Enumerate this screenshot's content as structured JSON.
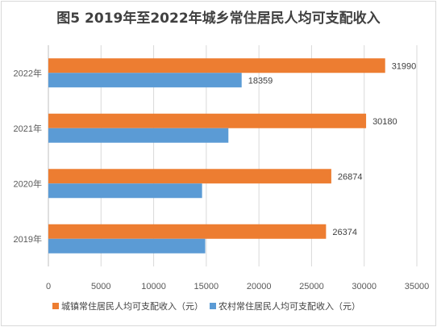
{
  "chart_data": {
    "type": "bar",
    "orientation": "horizontal",
    "title": "图5 2019年至2022年城乡常住居民人均可支配收入",
    "categories": [
      "2022年",
      "2021年",
      "2020年",
      "2019年"
    ],
    "series": [
      {
        "name": "城镇常住居民人均可支配收入（元）",
        "color": "#ed7d31",
        "values": [
          31990,
          30180,
          26874,
          26374
        ],
        "labels": [
          "31990",
          "30180",
          "26874",
          "26374"
        ]
      },
      {
        "name": "农村常住居民人均可支配收入（元）",
        "color": "#5b9bd5",
        "values": [
          18359,
          17100,
          14600,
          14900
        ],
        "labels": [
          "18359",
          "",
          "",
          ""
        ]
      }
    ],
    "xlim": [
      0,
      35000
    ],
    "xticks": [
      "0",
      "5000",
      "10000",
      "15000",
      "20000",
      "25000",
      "30000",
      "35000"
    ],
    "grid": true,
    "legend_position": "bottom"
  }
}
